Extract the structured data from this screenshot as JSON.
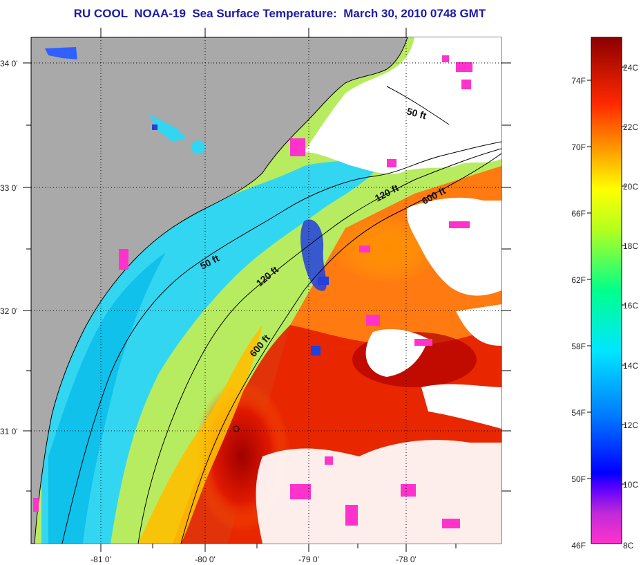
{
  "title": "RU COOL  NOAA-19  Sea Surface Temperature:  March 30, 2010 0748 GMT",
  "map": {
    "latitude_labels": [
      "34 0'",
      "33 0'",
      "32 0'",
      "31 0'"
    ],
    "longitude_labels": [
      "-81 0'",
      "-80 0'",
      "-79 0'",
      "-78 0'"
    ],
    "contour_labels": [
      "50 ft",
      "120 ft",
      "600 ft",
      "50 ft",
      "120 ft",
      "600 ft"
    ],
    "colors": {
      "land": "#a9a9a9",
      "cloud": "#ffffff",
      "cold_nearshore": "#33d6f0",
      "mid_shelf": "#9ee6a0",
      "gulf_stream": "#e61e00",
      "warm_core": "#b00000"
    }
  },
  "colorbar": {
    "fahrenheit_labels": [
      "74F",
      "70F",
      "66F",
      "62F",
      "58F",
      "54F",
      "50F",
      "46F"
    ],
    "celsius_labels": [
      "24C",
      "22C",
      "20C",
      "18C",
      "16C",
      "14C",
      "12C",
      "10C",
      "8C"
    ],
    "range_c": [
      8,
      25
    ],
    "stops": [
      "#ff33cc",
      "#7a2ad8",
      "#0000ff",
      "#0078ff",
      "#00e6ff",
      "#00ffa0",
      "#ffff00",
      "#ff9900",
      "#ff2200",
      "#8b0000"
    ]
  }
}
